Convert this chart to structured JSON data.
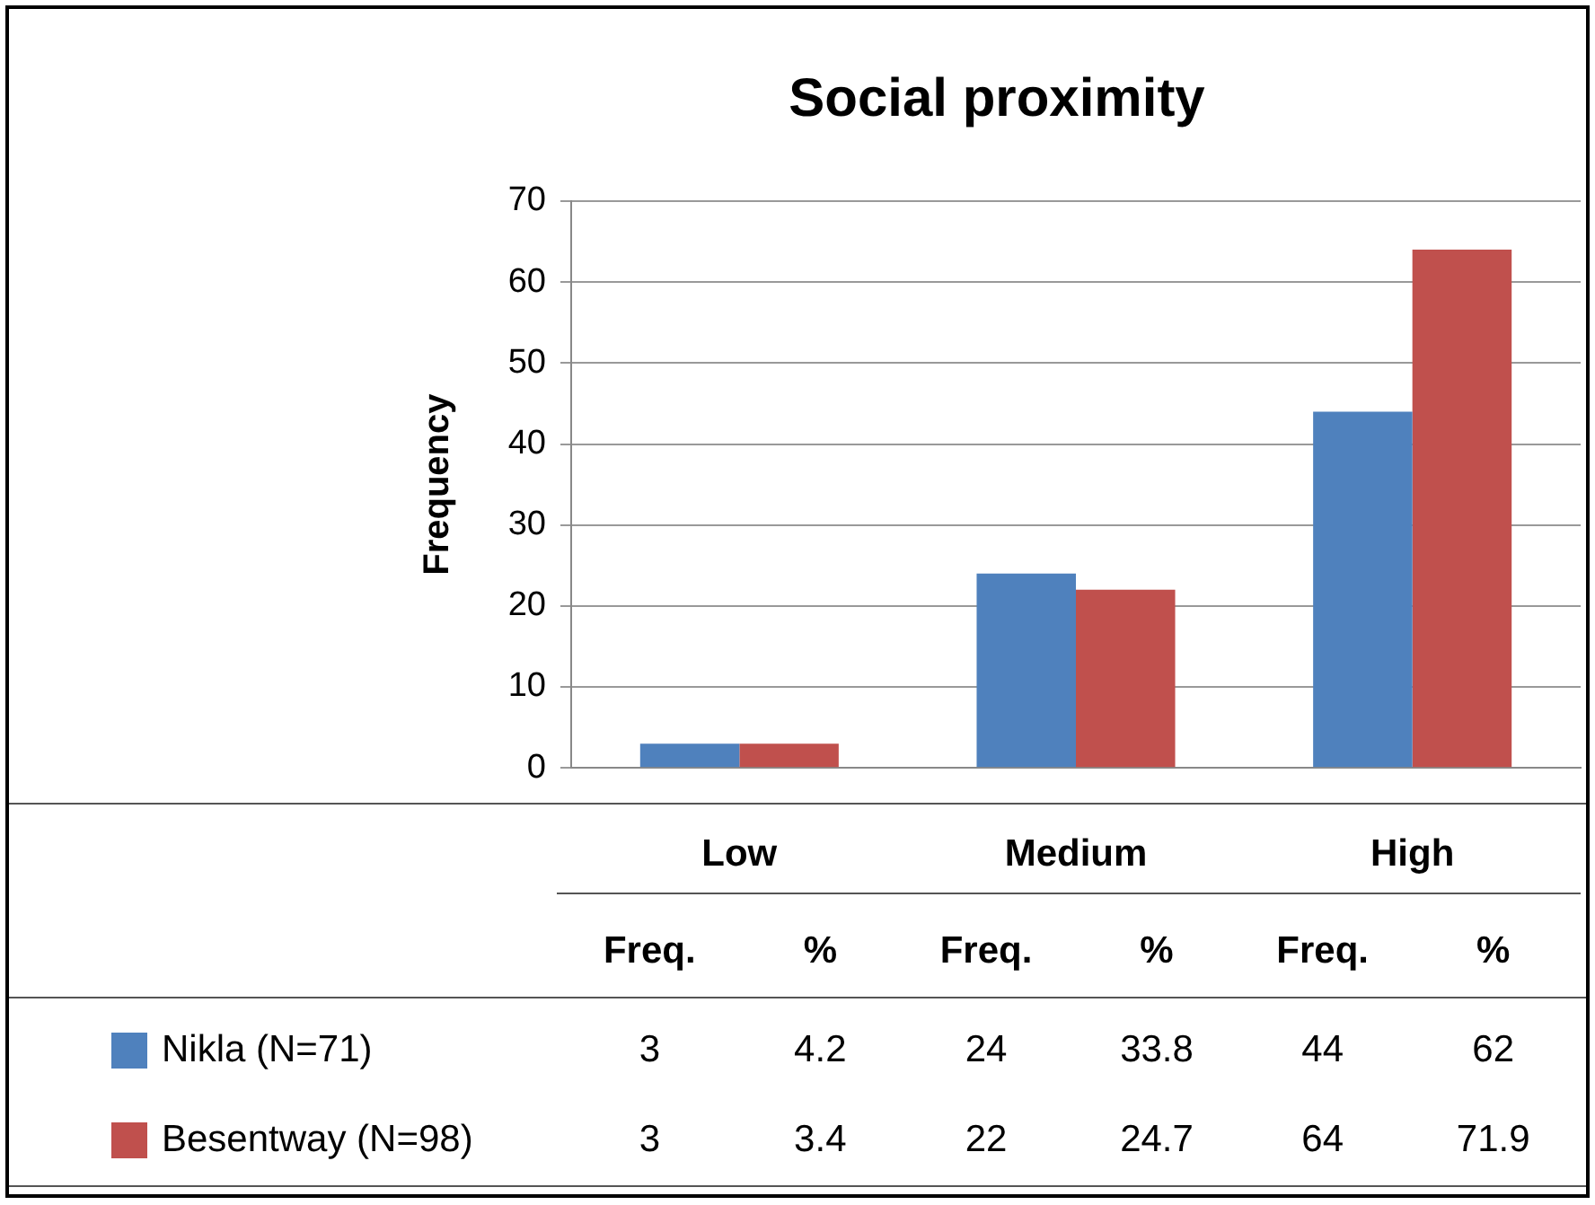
{
  "chart_data": {
    "type": "bar",
    "title": "Social proximity",
    "ylabel": "Frequency",
    "categories": [
      "Low",
      "Medium",
      "High"
    ],
    "series": [
      {
        "name": "Nikla (N=71)",
        "color": "#4f81bd",
        "values": [
          3,
          24,
          44
        ]
      },
      {
        "name": "Besentway (N=98)",
        "color": "#c0504d",
        "values": [
          3,
          22,
          64
        ]
      }
    ],
    "ylim": [
      0,
      70
    ],
    "yticks": [
      0,
      10,
      20,
      30,
      40,
      50,
      60,
      70
    ],
    "grid": "y",
    "legend": "bottom",
    "data_labels": true,
    "annotations": [
      "Freq.",
      "%",
      "4.2",
      "33.8",
      "62",
      "3.4",
      "24.7",
      "71.9"
    ]
  }
}
